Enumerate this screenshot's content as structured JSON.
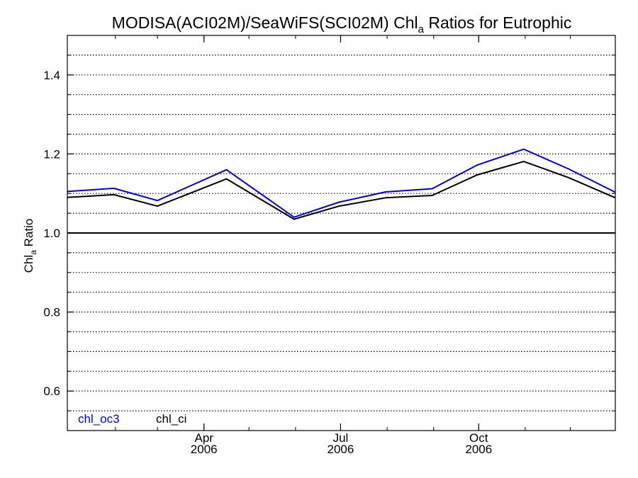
{
  "chart_data": {
    "type": "line",
    "title": {
      "prefix": "MODISA(ACI02M)/SeaWiFS(SCI02M)  Chl",
      "subscript": "a",
      "suffix": " Ratios for Eutrophic"
    },
    "ylabel": {
      "prefix": "Chl",
      "subscript": "a",
      "suffix": " Ratio"
    },
    "ylim": [
      0.5,
      1.5
    ],
    "yticks": [
      0.6,
      0.8,
      1.0,
      1.2,
      1.4
    ],
    "ytick_labels": [
      "0.6",
      "0.8",
      "1.0",
      "1.2",
      "1.4"
    ],
    "xlim": [
      "2005-12-31",
      "2006-12-31"
    ],
    "xticks": [
      {
        "date": "2006-04-01",
        "month": "Apr",
        "year": "2006"
      },
      {
        "date": "2006-07-01",
        "month": "Jul",
        "year": "2006"
      },
      {
        "date": "2006-10-01",
        "month": "Oct",
        "year": "2006"
      }
    ],
    "reference_line": 1.0,
    "grid": "horizontal dotted",
    "series": [
      {
        "name": "chl_oc3",
        "color": "#0000dd",
        "points": [
          {
            "x": "2005-12-31",
            "y": 1.105
          },
          {
            "x": "2006-01-31",
            "y": 1.113
          },
          {
            "x": "2006-03-01",
            "y": 1.082
          },
          {
            "x": "2006-04-16",
            "y": 1.16
          },
          {
            "x": "2006-05-31",
            "y": 1.04
          },
          {
            "x": "2006-06-30",
            "y": 1.078
          },
          {
            "x": "2006-07-31",
            "y": 1.104
          },
          {
            "x": "2006-08-31",
            "y": 1.112
          },
          {
            "x": "2006-09-30",
            "y": 1.172
          },
          {
            "x": "2006-10-31",
            "y": 1.212
          },
          {
            "x": "2006-11-30",
            "y": 1.162
          },
          {
            "x": "2006-12-31",
            "y": 1.103
          }
        ]
      },
      {
        "name": "chl_ci",
        "color": "#000000",
        "points": [
          {
            "x": "2005-12-31",
            "y": 1.09
          },
          {
            "x": "2006-01-31",
            "y": 1.097
          },
          {
            "x": "2006-03-01",
            "y": 1.068
          },
          {
            "x": "2006-04-16",
            "y": 1.137
          },
          {
            "x": "2006-05-31",
            "y": 1.035
          },
          {
            "x": "2006-06-30",
            "y": 1.068
          },
          {
            "x": "2006-07-31",
            "y": 1.089
          },
          {
            "x": "2006-08-31",
            "y": 1.095
          },
          {
            "x": "2006-09-30",
            "y": 1.147
          },
          {
            "x": "2006-10-31",
            "y": 1.181
          },
          {
            "x": "2006-11-30",
            "y": 1.14
          },
          {
            "x": "2006-12-31",
            "y": 1.089
          }
        ]
      }
    ],
    "legend_position": "bottom-left"
  }
}
